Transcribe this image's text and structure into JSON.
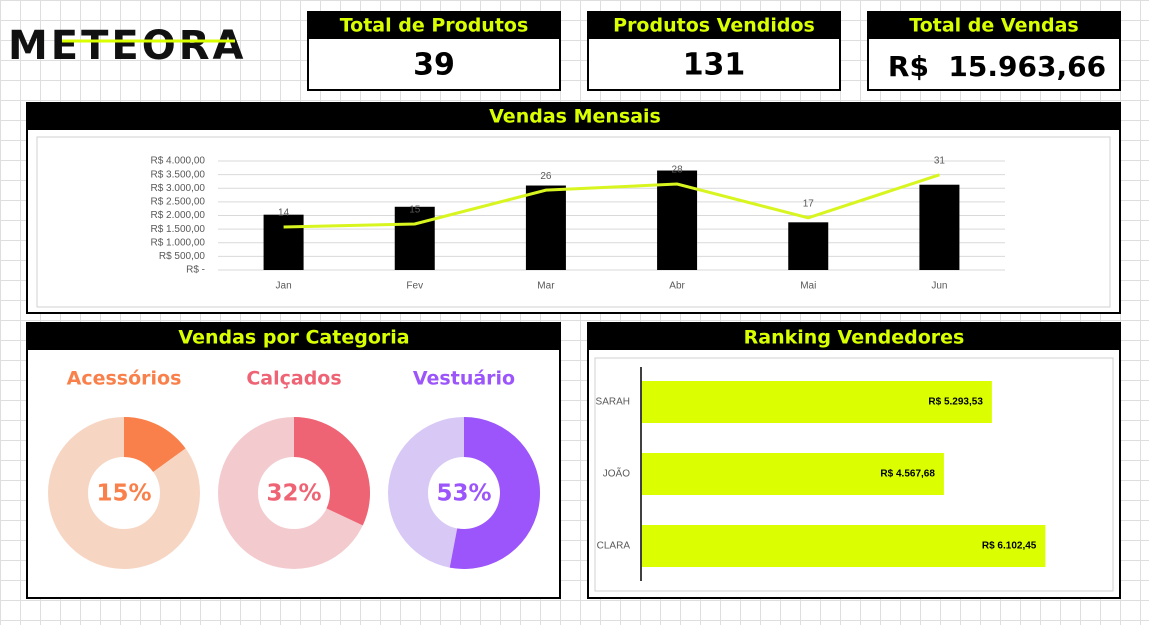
{
  "logo": "METEORA",
  "kpis": [
    {
      "label": "Total de Produtos",
      "value": "39"
    },
    {
      "label": "Produtos Vendidos",
      "value": "131"
    },
    {
      "label": "Total de Vendas",
      "value": "R$  15.963,66"
    }
  ],
  "chart_data": [
    {
      "type": "bar-line",
      "title": "Vendas Mensais",
      "categories": [
        "Jan",
        "Fev",
        "Mar",
        "Abr",
        "Mai",
        "Jun"
      ],
      "series": [
        {
          "type": "bar",
          "color": "#000000",
          "values": [
            2030,
            2320,
            3100,
            3650,
            1750,
            3130
          ]
        },
        {
          "type": "line",
          "axis": "y2",
          "color": "#d8f51f",
          "values": [
            14,
            15,
            26,
            28,
            17,
            31
          ]
        }
      ],
      "ylim": [
        0,
        4000
      ],
      "yticks": [
        {
          "value": 0,
          "label": "R$ -"
        },
        {
          "value": 500,
          "label": "R$ 500,00"
        },
        {
          "value": 1000,
          "label": "R$ 1.000,00"
        },
        {
          "value": 1500,
          "label": "R$ 1.500,00"
        },
        {
          "value": 2000,
          "label": "R$ 2.000,00"
        },
        {
          "value": 2500,
          "label": "R$ 2.500,00"
        },
        {
          "value": 3000,
          "label": "R$ 3.000,00"
        },
        {
          "value": 3500,
          "label": "R$ 3.500,00"
        },
        {
          "value": 4000,
          "label": "R$ 4.000,00"
        }
      ],
      "y2lim": [
        0,
        35.5
      ],
      "grid": true
    },
    {
      "type": "donut",
      "title": "Vendas por Categoria",
      "categories": [
        "Acessórios",
        "Calçados",
        "Vestuário"
      ],
      "values": [
        15,
        32,
        53
      ],
      "value_labels": [
        "15%",
        "32%",
        "53%"
      ],
      "colors": [
        "#f9804a",
        "#ee6474",
        "#9b55fa"
      ],
      "track_colors": [
        "#f7d5c3",
        "#f3cbcf",
        "#d8c8f6"
      ]
    },
    {
      "type": "hbar",
      "title": "Ranking Vendedores",
      "categories": [
        "SARAH",
        "JOÃO",
        "CLARA"
      ],
      "values": [
        5293.53,
        4567.68,
        6102.45
      ],
      "value_labels": [
        "R$ 5.293,53",
        "R$ 4.567,68",
        "R$ 6.102,45"
      ],
      "color": "#dbff00",
      "xlim": [
        0,
        7080
      ]
    }
  ]
}
